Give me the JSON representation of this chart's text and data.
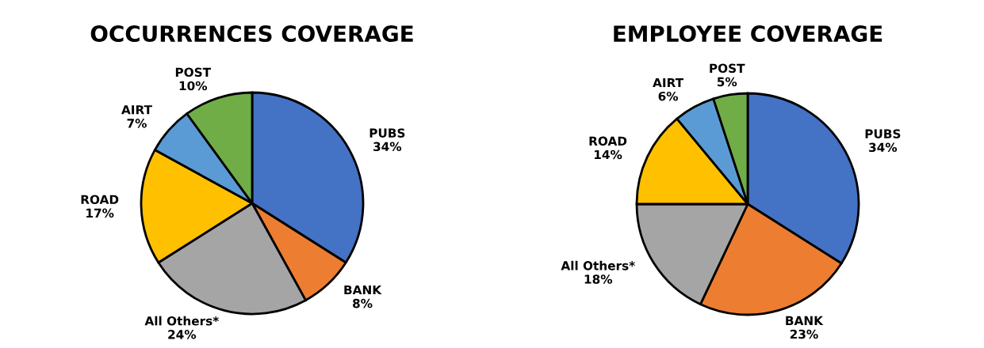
{
  "chart_data": [
    {
      "type": "pie",
      "title": "OCCURRENCES COVERAGE",
      "categories": [
        "PUBS",
        "BANK",
        "All Others*",
        "ROAD",
        "AIRT",
        "POST"
      ],
      "values": [
        34,
        8,
        24,
        17,
        7,
        10
      ],
      "value_labels": [
        "34%",
        "8%",
        "24%",
        "17%",
        "7%",
        "10%"
      ],
      "colors": [
        "#4472c4",
        "#ed7d31",
        "#a5a5a5",
        "#ffc000",
        "#5b9bd5",
        "#70ad47"
      ],
      "legend": false
    },
    {
      "type": "pie",
      "title": "EMPLOYEE COVERAGE",
      "categories": [
        "PUBS",
        "BANK",
        "All Others*",
        "ROAD",
        "AIRT",
        "POST"
      ],
      "values": [
        34,
        23,
        18,
        14,
        6,
        5
      ],
      "value_labels": [
        "34%",
        "23%",
        "18%",
        "14%",
        "6%",
        "5%"
      ],
      "colors": [
        "#4472c4",
        "#ed7d31",
        "#a5a5a5",
        "#ffc000",
        "#5b9bd5",
        "#70ad47"
      ],
      "legend": false
    }
  ]
}
